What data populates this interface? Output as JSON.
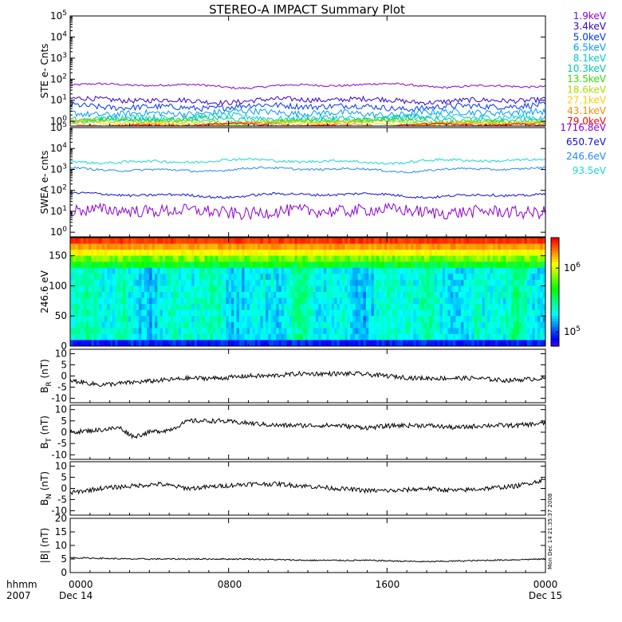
{
  "title": "STEREO-A IMPACT Summary Plot",
  "time_axis": {
    "row1_labels": [
      "hhmm",
      "0000",
      "0800",
      "1600",
      "0000"
    ],
    "row2_labels": [
      "2007",
      "Dec 14",
      "",
      "",
      "Dec 15"
    ],
    "range_hours": [
      0,
      24
    ],
    "major_ticks_hours": [
      0,
      8,
      16,
      24
    ]
  },
  "stamp": "Mon Dec 14 21:35:37 2008",
  "chart_data": [
    {
      "id": "ste",
      "type": "line",
      "ylabel": "STE e- Cnts",
      "yscale": "log",
      "ylim": [
        0.6,
        100000
      ],
      "yticks": [
        1,
        10,
        100,
        1000,
        10000,
        100000
      ],
      "ytick_labels": [
        "10^0",
        "10^1",
        "10^2",
        "10^3",
        "10^4",
        "10^5"
      ],
      "x": [
        0,
        24
      ],
      "series": [
        {
          "name": "1.9keV",
          "color": "#8c00d4",
          "level": 50,
          "noise": 0.05
        },
        {
          "name": "3.4keV",
          "color": "#3300cc",
          "level": 10,
          "noise": 0.12
        },
        {
          "name": "5.0keV",
          "color": "#0033ff",
          "level": 5,
          "noise": 0.14
        },
        {
          "name": "6.5keV",
          "color": "#0099ff",
          "level": 2.5,
          "noise": 0.15
        },
        {
          "name": "8.1keV",
          "color": "#00cccc",
          "level": 1.5,
          "noise": 0.15
        },
        {
          "name": "10.3keV",
          "color": "#00cc99",
          "level": 1.2,
          "noise": 0.12
        },
        {
          "name": "13.5keV",
          "color": "#33dd00",
          "level": 1.0,
          "noise": 0.1
        },
        {
          "name": "18.6keV",
          "color": "#aadd00",
          "level": 0.9,
          "noise": 0.08
        },
        {
          "name": "27.1keV",
          "color": "#ffcc00",
          "level": 0.8,
          "noise": 0.06
        },
        {
          "name": "43.1keV",
          "color": "#ff8800",
          "level": 0.7,
          "noise": 0.05
        },
        {
          "name": "79.0keV",
          "color": "#ff0000",
          "level": 0.65,
          "noise": 0.04
        }
      ]
    },
    {
      "id": "swea",
      "type": "line",
      "ylabel": "SWEA e- cnts",
      "yscale": "log",
      "ylim": [
        0.6,
        100000
      ],
      "yticks": [
        1,
        10,
        100,
        1000,
        10000,
        100000
      ],
      "ytick_labels": [
        "10^0",
        "10^1",
        "10^2",
        "10^3",
        "10^4",
        "10^5"
      ],
      "x": [
        0,
        24
      ],
      "series": [
        {
          "name": "1716.8eV",
          "color": "#8c00d4",
          "level": 10,
          "noise": 0.3
        },
        {
          "name": "650.7eV",
          "color": "#1010dd",
          "level": 60,
          "noise": 0.06
        },
        {
          "name": "246.6eV",
          "color": "#2288ff",
          "level": 1000,
          "noise": 0.05
        },
        {
          "name": "93.5eV",
          "color": "#11ddcc",
          "level": 2500,
          "noise": 0.06
        }
      ]
    },
    {
      "id": "pad",
      "type": "heatmap",
      "ylabel": "246.6 eV",
      "ylim": [
        0,
        180
      ],
      "yticks": [
        0,
        50,
        100,
        150
      ],
      "ytick_labels": [
        "0",
        "50",
        "100",
        "150"
      ],
      "colorbar": {
        "scale": "log",
        "range": [
          60000,
          3000000
        ],
        "ticks": [
          100000,
          1000000
        ],
        "tick_labels": [
          "10^5",
          "10^6"
        ]
      }
    },
    {
      "id": "br",
      "type": "line",
      "ylabel_main": "B",
      "ylabel_sub": "R",
      "ylabel_unit": "(nT)",
      "ylim": [
        -12,
        12
      ],
      "yticks": [
        -10,
        -5,
        0,
        5,
        10
      ],
      "ytick_labels": [
        "-10",
        "-5",
        "0",
        "5",
        "10"
      ],
      "x": [
        0,
        1.5,
        3,
        4.5,
        6,
        7.5,
        9,
        10,
        11.5,
        13,
        14.5,
        16,
        17.5,
        19,
        20.5,
        22,
        24
      ],
      "values": [
        -2,
        -4,
        -3,
        -2,
        -1,
        -1,
        0,
        0,
        1,
        1,
        1,
        0,
        -1,
        -1,
        -1,
        -2,
        -1
      ]
    },
    {
      "id": "bt",
      "type": "line",
      "ylabel_main": "B",
      "ylabel_sub": "T",
      "ylabel_unit": "(nT)",
      "ylim": [
        -12,
        12
      ],
      "yticks": [
        -10,
        -5,
        0,
        5,
        10
      ],
      "ytick_labels": [
        "-10",
        "-5",
        "0",
        "5",
        "10"
      ],
      "x": [
        0,
        1.5,
        2.5,
        3.2,
        4,
        5,
        6,
        7.5,
        9,
        10.5,
        12,
        13.5,
        15,
        16.5,
        18,
        19.5,
        21,
        22.5,
        24
      ],
      "values": [
        0,
        1,
        2,
        -2,
        0,
        1,
        5,
        5,
        4,
        3,
        3,
        3,
        2,
        3,
        3,
        2,
        3,
        3,
        4
      ]
    },
    {
      "id": "bn",
      "type": "line",
      "ylabel_main": "B",
      "ylabel_sub": "N",
      "ylabel_unit": "(nT)",
      "ylim": [
        -12,
        12
      ],
      "yticks": [
        -10,
        -5,
        0,
        5,
        10
      ],
      "ytick_labels": [
        "-10",
        "-5",
        "0",
        "5",
        "10"
      ],
      "x": [
        0,
        1.5,
        3,
        4.5,
        6,
        7.5,
        9,
        10.5,
        12,
        13.5,
        15,
        16.5,
        18,
        19.5,
        21,
        22.5,
        24
      ],
      "values": [
        -2,
        0,
        1,
        2,
        0,
        1,
        2,
        2,
        1,
        0,
        -1,
        -1,
        0,
        -1,
        0,
        1,
        4
      ]
    },
    {
      "id": "bmag",
      "type": "line",
      "ylabel": "|B| (nT)",
      "ylim": [
        0,
        20
      ],
      "yticks": [
        0,
        5,
        10,
        15,
        20
      ],
      "ytick_labels": [
        "0",
        "5",
        "10",
        "15",
        "20"
      ],
      "x": [
        0,
        3,
        6,
        9,
        12,
        15,
        18,
        21,
        24
      ],
      "values": [
        5.5,
        5,
        5,
        5,
        4.5,
        4.5,
        4,
        4.5,
        5
      ]
    }
  ]
}
